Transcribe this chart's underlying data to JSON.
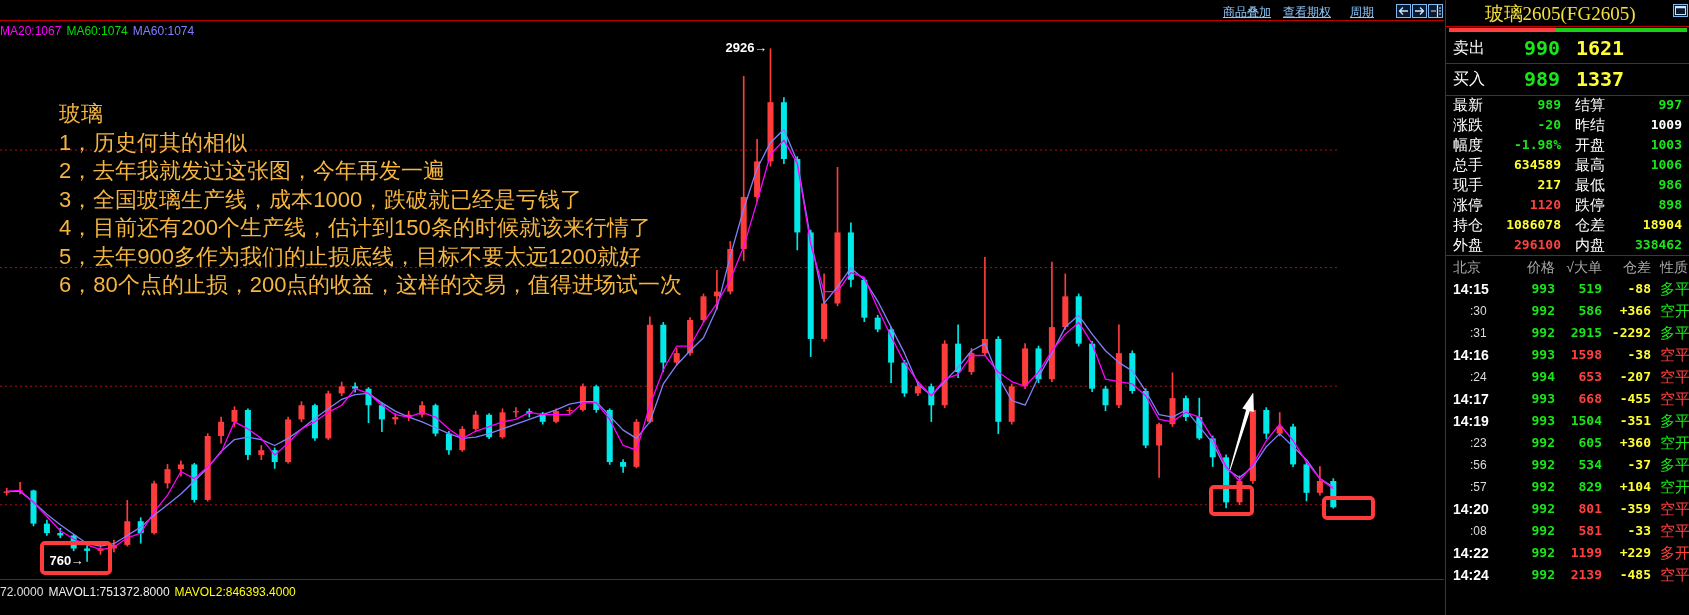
{
  "chart_data": [
    {
      "type": "candlestick",
      "categories": [
        null,
        null,
        null,
        null,
        null,
        null,
        null,
        null,
        null,
        null,
        null,
        null,
        null,
        null,
        null,
        null,
        null,
        null,
        null,
        null,
        null,
        null,
        null,
        null,
        null,
        null,
        null,
        null,
        null,
        null,
        null,
        null,
        null,
        null,
        null,
        null,
        null,
        null,
        null,
        null,
        null,
        null,
        null,
        null,
        null,
        null,
        null,
        null,
        null,
        null,
        null,
        null,
        null,
        null,
        null,
        null,
        null,
        null,
        null,
        null,
        null,
        null,
        null,
        null,
        null,
        null,
        null,
        null,
        null,
        null,
        null,
        null,
        null,
        null,
        null,
        null,
        null,
        null,
        null,
        null,
        null,
        null,
        null,
        null,
        null,
        null,
        null,
        null,
        null,
        null,
        null,
        null,
        null,
        null,
        null,
        null,
        null,
        null,
        null,
        null
      ],
      "ohlc": [
        [
          1050,
          1070,
          1040,
          1056
        ],
        [
          1056,
          1094,
          1045,
          1060
        ],
        [
          1060,
          1062,
          910,
          920
        ],
        [
          920,
          935,
          870,
          880
        ],
        [
          880,
          900,
          860,
          870
        ],
        [
          870,
          875,
          805,
          815
        ],
        [
          815,
          830,
          760,
          805
        ],
        [
          805,
          830,
          790,
          815
        ],
        [
          815,
          850,
          800,
          830
        ],
        [
          830,
          1018,
          825,
          930
        ],
        [
          930,
          945,
          837,
          880
        ],
        [
          880,
          1100,
          875,
          1090
        ],
        [
          1090,
          1170,
          1070,
          1150
        ],
        [
          1150,
          1185,
          1120,
          1170
        ],
        [
          1170,
          1175,
          1010,
          1020
        ],
        [
          1020,
          1300,
          1015,
          1290
        ],
        [
          1290,
          1370,
          1260,
          1350
        ],
        [
          1350,
          1414,
          1330,
          1400
        ],
        [
          1400,
          1405,
          1190,
          1210
        ],
        [
          1210,
          1250,
          1190,
          1230
        ],
        [
          1230,
          1240,
          1153,
          1180
        ],
        [
          1180,
          1370,
          1175,
          1360
        ],
        [
          1360,
          1435,
          1350,
          1420
        ],
        [
          1420,
          1425,
          1271,
          1280
        ],
        [
          1280,
          1480,
          1275,
          1470
        ],
        [
          1470,
          1518,
          1460,
          1500
        ],
        [
          1500,
          1515,
          1475,
          1490
        ],
        [
          1490,
          1495,
          1346,
          1420
        ],
        [
          1420,
          1430,
          1308,
          1360
        ],
        [
          1360,
          1385,
          1340,
          1370
        ],
        [
          1370,
          1395,
          1355,
          1380
        ],
        [
          1380,
          1435,
          1370,
          1420
        ],
        [
          1420,
          1425,
          1290,
          1300
        ],
        [
          1300,
          1310,
          1212,
          1230
        ],
        [
          1230,
          1330,
          1225,
          1320
        ],
        [
          1320,
          1395,
          1310,
          1380
        ],
        [
          1380,
          1385,
          1279,
          1285
        ],
        [
          1285,
          1405,
          1280,
          1390
        ],
        [
          1390,
          1410,
          1370,
          1395
        ],
        [
          1395,
          1405,
          1370,
          1385
        ],
        [
          1385,
          1390,
          1340,
          1350
        ],
        [
          1350,
          1405,
          1345,
          1395
        ],
        [
          1395,
          1410,
          1385,
          1400
        ],
        [
          1400,
          1510,
          1395,
          1500
        ],
        [
          1500,
          1505,
          1390,
          1400
        ],
        [
          1400,
          1405,
          1170,
          1180
        ],
        [
          1180,
          1190,
          1136,
          1160
        ],
        [
          1160,
          1360,
          1155,
          1350
        ],
        [
          1350,
          1793,
          1345,
          1760
        ],
        [
          1760,
          1770,
          1561,
          1600
        ],
        [
          1600,
          1660,
          1590,
          1640
        ],
        [
          1640,
          1790,
          1630,
          1780
        ],
        [
          1780,
          1890,
          1770,
          1880
        ],
        [
          1880,
          1990,
          1825,
          1900
        ],
        [
          1900,
          2112,
          1890,
          2080
        ],
        [
          2080,
          2809,
          2030,
          2300
        ],
        [
          2300,
          2543,
          2280,
          2450
        ],
        [
          2450,
          2926,
          2430,
          2700
        ],
        [
          2700,
          2720,
          2440,
          2460
        ],
        [
          2460,
          2470,
          2076,
          2150
        ],
        [
          2150,
          2160,
          1625,
          1700
        ],
        [
          1700,
          1975,
          1690,
          1850
        ],
        [
          1850,
          2425,
          1840,
          2150
        ],
        [
          2150,
          2190,
          1920,
          1950
        ],
        [
          1950,
          1960,
          1773,
          1790
        ],
        [
          1790,
          1800,
          1730,
          1740
        ],
        [
          1740,
          1750,
          1515,
          1600
        ],
        [
          1600,
          1610,
          1457,
          1470
        ],
        [
          1470,
          1520,
          1460,
          1500
        ],
        [
          1500,
          1510,
          1351,
          1420
        ],
        [
          1420,
          1693,
          1410,
          1680
        ],
        [
          1680,
          1760,
          1536,
          1560
        ],
        [
          1560,
          1660,
          1550,
          1640
        ],
        [
          1640,
          2045,
          1630,
          1700
        ],
        [
          1700,
          1710,
          1300,
          1350
        ],
        [
          1350,
          1510,
          1340,
          1500
        ],
        [
          1500,
          1680,
          1490,
          1660
        ],
        [
          1660,
          1670,
          1515,
          1530
        ],
        [
          1530,
          2025,
          1520,
          1750
        ],
        [
          1750,
          1975,
          1740,
          1880
        ],
        [
          1880,
          1890,
          1670,
          1680
        ],
        [
          1680,
          1690,
          1477,
          1490
        ],
        [
          1490,
          1500,
          1397,
          1420
        ],
        [
          1420,
          1760,
          1410,
          1640
        ],
        [
          1640,
          1650,
          1470,
          1480
        ],
        [
          1480,
          1490,
          1240,
          1250
        ],
        [
          1250,
          1345,
          1115,
          1340
        ],
        [
          1340,
          1557,
          1330,
          1450
        ],
        [
          1450,
          1460,
          1355,
          1370
        ],
        [
          1370,
          1450,
          1275,
          1280
        ],
        [
          1280,
          1290,
          1161,
          1200
        ],
        [
          1200,
          1210,
          986,
          1010
        ],
        [
          1010,
          1122,
          1000,
          1100
        ],
        [
          1100,
          1469,
          1090,
          1400
        ],
        [
          1400,
          1410,
          1279,
          1300
        ],
        [
          1300,
          1389,
          1290,
          1330
        ],
        [
          1330,
          1340,
          1161,
          1170
        ],
        [
          1170,
          1180,
          1016,
          1050
        ],
        [
          1050,
          1161,
          1040,
          1100
        ],
        [
          1100,
          1110,
          985,
          989
        ]
      ],
      "colors": [
        "#ff3c3c",
        "#ff3c3c",
        "#00e8e8",
        "#00e8e8",
        "#00e8e8",
        "#00e8e8",
        "#00e8e8",
        "#ff3c3c",
        "#ff3c3c",
        "#ff3c3c",
        "#00e8e8",
        "#ff3c3c",
        "#ff3c3c",
        "#ff3c3c",
        "#00e8e8",
        "#ff3c3c",
        "#ff3c3c",
        "#ff3c3c",
        "#00e8e8",
        "#ff3c3c",
        "#00e8e8",
        "#ff3c3c",
        "#ff3c3c",
        "#00e8e8",
        "#ff3c3c",
        "#ff3c3c",
        "#00e8e8",
        "#00e8e8",
        "#00e8e8",
        "#ff3c3c",
        "#ff3c3c",
        "#ff3c3c",
        "#00e8e8",
        "#00e8e8",
        "#ff3c3c",
        "#ff3c3c",
        "#00e8e8",
        "#ff3c3c",
        "#ff3c3c",
        "#00e8e8",
        "#00e8e8",
        "#ff3c3c",
        "#ff3c3c",
        "#ff3c3c",
        "#00e8e8",
        "#00e8e8",
        "#00e8e8",
        "#ff3c3c",
        "#ff3c3c",
        "#00e8e8",
        "#ff3c3c",
        "#ff3c3c",
        "#ff3c3c",
        "#ff3c3c",
        "#ff3c3c",
        "#ff3c3c",
        "#ff3c3c",
        "#ff3c3c",
        "#00e8e8",
        "#00e8e8",
        "#00e8e8",
        "#ff3c3c",
        "#ff3c3c",
        "#00e8e8",
        "#00e8e8",
        "#00e8e8",
        "#00e8e8",
        "#00e8e8",
        "#ff3c3c",
        "#00e8e8",
        "#ff3c3c",
        "#00e8e8",
        "#ff3c3c",
        "#ff3c3c",
        "#00e8e8",
        "#ff3c3c",
        "#ff3c3c",
        "#00e8e8",
        "#ff3c3c",
        "#ff3c3c",
        "#00e8e8",
        "#00e8e8",
        "#00e8e8",
        "#ff3c3c",
        "#00e8e8",
        "#00e8e8",
        "#ff3c3c",
        "#ff3c3c",
        "#00e8e8",
        "#00e8e8",
        "#00e8e8",
        "#00e8e8",
        "#ff3c3c",
        "#ff3c3c",
        "#00e8e8",
        "#ff3c3c",
        "#00e8e8",
        "#00e8e8",
        "#ff3c3c",
        "#00e8e8"
      ],
      "series": [
        {
          "name": "MA20:1067",
          "color": "#ff00ff",
          "type": "line",
          "values": [
            1056,
            1060,
            1010,
            950,
            890,
            855,
            830,
            810,
            820,
            860,
            880,
            970,
            1040,
            1140,
            1110,
            1160,
            1220,
            1350,
            1320,
            1280,
            1210,
            1260,
            1320,
            1350,
            1390,
            1420,
            1490,
            1470,
            1420,
            1380,
            1370,
            1390,
            1370,
            1320,
            1280,
            1310,
            1330,
            1350,
            1360,
            1390,
            1380,
            1380,
            1380,
            1430,
            1430,
            1360,
            1250,
            1230,
            1420,
            1570,
            1670,
            1670,
            1770,
            1850,
            1950,
            2090,
            2280,
            2480,
            2540,
            2440,
            2100,
            1900,
            1900,
            1980,
            1960,
            1830,
            1710,
            1600,
            1520,
            1460,
            1530,
            1550,
            1630,
            1630,
            1560,
            1520,
            1500,
            1560,
            1650,
            1720,
            1770,
            1680,
            1530,
            1520,
            1510,
            1460,
            1360,
            1350,
            1390,
            1370,
            1280,
            1160,
            1100,
            1170,
            1270,
            1340,
            1270,
            1180,
            1110,
            1067
          ]
        },
        {
          "name": "MA60:1074",
          "color": "#00e000",
          "type": "line",
          "values": [
            null,
            null,
            null,
            null,
            null,
            null,
            null,
            null,
            null,
            null,
            null,
            null,
            null,
            null,
            null,
            null,
            null,
            null,
            null,
            null,
            null,
            null,
            null,
            null,
            null,
            null,
            null,
            null,
            null,
            null,
            null,
            null,
            null,
            null,
            null,
            null,
            null,
            null,
            null,
            null,
            null,
            null,
            null,
            null,
            null,
            null,
            null,
            null,
            null,
            null,
            null,
            null,
            null,
            null,
            null,
            null,
            null,
            null,
            null,
            null,
            null,
            null,
            null,
            null,
            null,
            null,
            null,
            null,
            null,
            null,
            null,
            null,
            null,
            null,
            null,
            null,
            null,
            null,
            null,
            null,
            null,
            null,
            null,
            null,
            null,
            null,
            null,
            null,
            null,
            null,
            null,
            null,
            null,
            null,
            null,
            null,
            null,
            null,
            null,
            null
          ]
        },
        {
          "name": "MA60:1074",
          "color": "#8080ff",
          "type": "line",
          "values": [
            1056,
            1056,
            1010,
            960,
            915,
            875,
            835,
            825,
            835,
            870,
            905,
            955,
            1000,
            1045,
            1100,
            1155,
            1225,
            1275,
            1285,
            1275,
            1250,
            1280,
            1320,
            1365,
            1405,
            1445,
            1465,
            1470,
            1430,
            1395,
            1370,
            1350,
            1325,
            1300,
            1280,
            1285,
            1300,
            1320,
            1340,
            1360,
            1380,
            1400,
            1425,
            1435,
            1435,
            1375,
            1315,
            1280,
            1350,
            1510,
            1590,
            1650,
            1705,
            1830,
            2050,
            2250,
            2420,
            2530,
            2585,
            2450,
            2120,
            1850,
            1920,
            2000,
            1950,
            1860,
            1750,
            1640,
            1510,
            1460,
            1520,
            1580,
            1650,
            1680,
            1540,
            1440,
            1420,
            1540,
            1640,
            1750,
            1800,
            1720,
            1650,
            1600,
            1565,
            1480,
            1380,
            1370,
            1400,
            1330,
            1260,
            1150,
            1115,
            1160,
            1245,
            1300,
            1245,
            1190,
            1110,
            1074
          ]
        }
      ],
      "ylim": [
        686,
        3043
      ],
      "yticks": [
        {
          "value": 1000,
          "label": null
        },
        {
          "value": 1500,
          "label": null
        },
        {
          "value": 2000,
          "label": null
        },
        {
          "value": 2500,
          "label": null
        }
      ],
      "grid": "y",
      "tick_labels": false,
      "legend": "top left",
      "annotations": [
        "2926→",
        "760→",
        "玻璃",
        "1，历史何其的相似",
        "2，去年我就发过这张图，今年再发一遍",
        "3，全国玻璃生产线，成本1000，跌破就已经是亏钱了",
        "4，目前还有200个生产线，估计到150条的时候就该来行情了",
        "5，去年900多作为我们的止损底线，目标不要太远1200就好",
        "6，80个点的止损，200点的收益，这样的交易，值得进场试一次",
        "商品叠加",
        "查看期权",
        "周期",
        "72.0000",
        "MAVOL1:751372.8000",
        "MAVOL2:846393.4000"
      ]
    },
    {
      "type": "other",
      "title": "玻璃2605(FG2605)",
      "annotations": [
        "卖出",
        "990",
        "1621",
        "买入",
        "989",
        "1337",
        "最新",
        "989",
        "结算",
        "997",
        "涨跌",
        "-20",
        "昨结",
        "1009",
        "幅度",
        "-1.98%",
        "开盘",
        "1003",
        "总手",
        "634589",
        "最高",
        "1006",
        "现手",
        "217",
        "最低",
        "986",
        "涨停",
        "1120",
        "跌停",
        "898",
        "持仓",
        "1086078",
        "仓差",
        "18904",
        "外盘",
        "296100",
        "内盘",
        "338462",
        "北京",
        "价格",
        "√大单",
        "仓差",
        "性质",
        "14:15",
        "993",
        "519",
        "-88",
        "多平",
        ":30",
        "992",
        "586",
        "+366",
        "空开",
        ":31",
        "992",
        "2915",
        "-2292",
        "多平",
        "14:16",
        "993",
        "1598",
        "-38",
        "空平",
        ":24",
        "994",
        "653",
        "-207",
        "空平",
        "14:17",
        "993",
        "668",
        "-455",
        "空平",
        "14:19",
        "993",
        "1504",
        "-351",
        "多平",
        ":23",
        "992",
        "605",
        "+360",
        "空开",
        ":56",
        "992",
        "534",
        "-37",
        "多平",
        ":57",
        "992",
        "829",
        "+104",
        "空开",
        "14:20",
        "992",
        "801",
        "-359",
        "空平",
        ":08",
        "992",
        "581",
        "-33",
        "空平",
        "14:22",
        "992",
        "1199",
        "+229",
        "多开",
        "14:24",
        "992",
        "2139",
        "-485",
        "空平"
      ]
    }
  ]
}
